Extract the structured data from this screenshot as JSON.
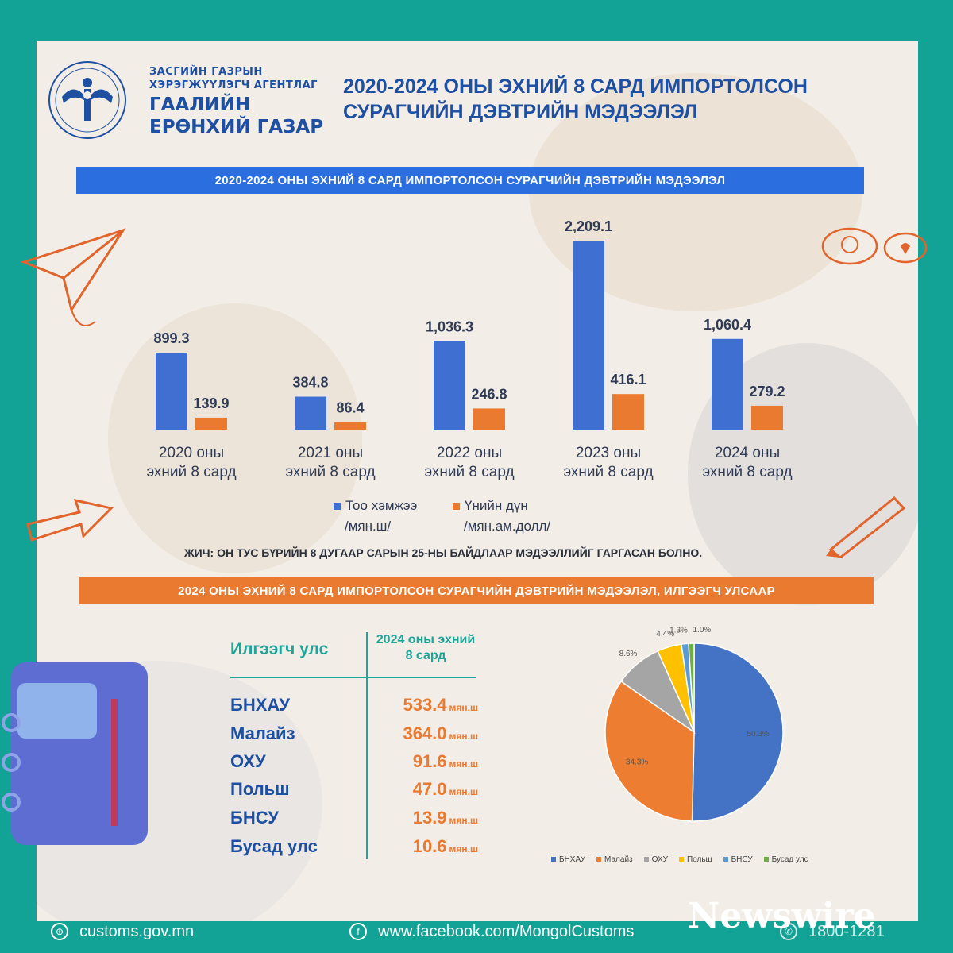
{
  "header": {
    "agency_line1": "ЗАСГИЙН ГАЗРЫН",
    "agency_line2": "ХЭРЭГЖҮҮЛЭГЧ АГЕНТЛАГ",
    "agency_line3": "ГААЛИЙН",
    "agency_line4": "ЕРӨНХИЙ ГАЗАР",
    "title_line1": "2020-2024 ОНЫ ЭХНИЙ 8 САРД ИМПОРТОЛСОН",
    "title_line2": "СУРАГЧИЙН ДЭВТРИЙН МЭДЭЭЛЭЛ"
  },
  "banner1": "2020-2024 ОНЫ ЭХНИЙ 8 САРД ИМПОРТОЛСОН СУРАГЧИЙН ДЭВТРИЙН МЭДЭЭЛЭЛ",
  "banner2": "2024 ОНЫ ЭХНИЙ 8 САРД ИМПОРТОЛСОН  СУРАГЧИЙН ДЭВТРИЙН МЭДЭЭЛЭЛ, ИЛГЭЭГЧ УЛСААР",
  "note": "ЖИЧ: ОН ТУС БҮРИЙН 8 ДУГААР САРЫН 25-НЫ БАЙДЛААР МЭДЭЭЛЛИЙГ ГАРГАСАН БОЛНО.",
  "chart_data": [
    {
      "type": "bar",
      "categories": [
        [
          "2020 оны",
          "эхний 8 сард"
        ],
        [
          "2021 оны",
          "эхний 8 сард"
        ],
        [
          "2022 оны",
          "эхний 8 сард"
        ],
        [
          "2023 оны",
          "эхний 8 сард"
        ],
        [
          "2024 оны",
          "эхний 8 сард"
        ]
      ],
      "series": [
        {
          "name": "Тоо хэмжээ",
          "unit": "/мян.ш/",
          "color": "#3f6fd1",
          "values": [
            899.3,
            384.8,
            1036.3,
            2209.1,
            1060.4
          ],
          "labels": [
            "899.3",
            "384.8",
            "1,036.3",
            "2,209.1",
            "1,060.4"
          ]
        },
        {
          "name": "Үнийн дүн",
          "unit": "/мян.ам.долл/",
          "color": "#ea7a2f",
          "values": [
            139.9,
            86.4,
            246.8,
            416.1,
            279.2
          ],
          "labels": [
            "139.9",
            "86.4",
            "246.8",
            "416.1",
            "279.2"
          ]
        }
      ]
    },
    {
      "type": "pie",
      "labels": [
        "БНХАУ",
        "Малайз",
        "ОХУ",
        "Польш",
        "БНСУ",
        "Бусад улс"
      ],
      "values": [
        50.3,
        34.3,
        8.6,
        4.4,
        1.3,
        1.0
      ],
      "value_labels": [
        "50.3%",
        "34.3%",
        "8.6%",
        "4.4%",
        "1.3%",
        "1.0%"
      ],
      "colors": [
        "#4472c4",
        "#ed7d31",
        "#a5a5a5",
        "#ffc000",
        "#5b9bd5",
        "#70ad47"
      ]
    }
  ],
  "table": {
    "col1": "Илгээгч улс",
    "col2": "2024 оны эхний 8 сард",
    "unit": "мян.ш",
    "rows": [
      {
        "country": "БНХАУ",
        "value": "533.4"
      },
      {
        "country": "Малайз",
        "value": "364.0"
      },
      {
        "country": "ОХУ",
        "value": "91.6"
      },
      {
        "country": "Польш",
        "value": "47.0"
      },
      {
        "country": "БНСУ",
        "value": "13.9"
      },
      {
        "country": "Бусад улс",
        "value": "10.6"
      }
    ]
  },
  "footer": {
    "website": "customs.gov.mn",
    "facebook": "www.facebook.com/MongolCustoms",
    "phone": "1800-1281",
    "watermark": "Newswire"
  }
}
